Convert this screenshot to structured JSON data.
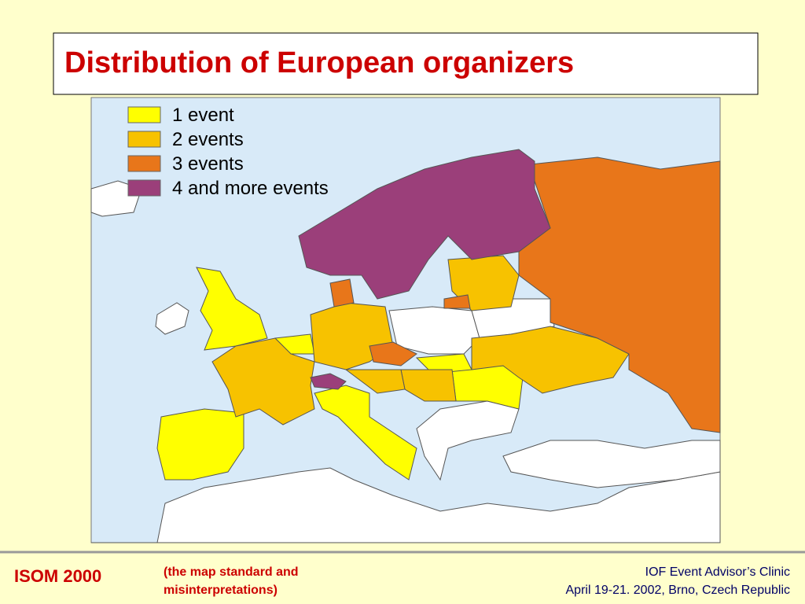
{
  "title": "Distribution of European organizers",
  "legend": [
    {
      "label": "1 event",
      "color": "#ffff00"
    },
    {
      "label": "2 events",
      "color": "#f7c200"
    },
    {
      "label": "3 events",
      "color": "#e8761a"
    },
    {
      "label": "4 and more events",
      "color": "#9b3f7a"
    }
  ],
  "footer": {
    "left": "ISOM 2000",
    "middle": [
      "(the map standard and",
      "misinterpretations)"
    ],
    "right": [
      "IOF Event Advisor’s Clinic",
      "April 19-21. 2002, Brno, Czech Republic"
    ]
  }
}
